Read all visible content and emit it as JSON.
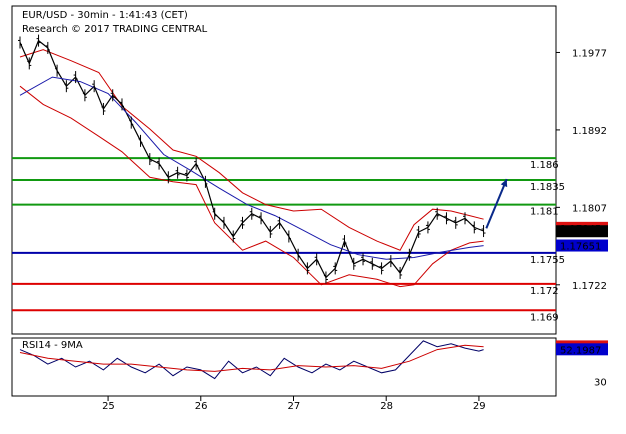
{
  "header": {
    "title": "EUR/USD - 30min - 1:41:43 (CET)",
    "subtitle": "Research © 2017 TRADING CENTRAL"
  },
  "chart_data": [
    {
      "type": "candlestick",
      "title": "EUR/USD - 30min - 1:41:43 (CET)",
      "ylim": [
        1.1668,
        1.2028
      ],
      "y_ticks": [
        1.1977,
        1.1892,
        1.1807,
        1.1722
      ],
      "x_ticks": [
        "25",
        "26",
        "27",
        "28",
        "29"
      ],
      "x_tick_pos": [
        0.3,
        1.3,
        2.3,
        3.3,
        4.3
      ],
      "x_range": [
        -0.65,
        4.7
      ],
      "levels": [
        {
          "label": "1.186",
          "value": 1.1861,
          "color": "#119911"
        },
        {
          "label": "1.1835",
          "value": 1.1837,
          "color": "#119911"
        },
        {
          "label": "1.181",
          "value": 1.181,
          "color": "#119911"
        },
        {
          "label": "1.1755",
          "value": 1.1757,
          "color": "#0000aa"
        },
        {
          "label": "1.172",
          "value": 1.1723,
          "color": "#dd0000"
        },
        {
          "label": "1.169",
          "value": 1.1694,
          "color": "#dd0000"
        }
      ],
      "price_badges": [
        {
          "label": "1.17845",
          "value": 1.17845,
          "bg": "#dd1111",
          "fg": "#ffffff"
        },
        {
          "label": "1.17808",
          "value": 1.17808,
          "bg": "#000000",
          "fg": "#ffffff"
        },
        {
          "label": "1.17651",
          "value": 1.17651,
          "bg": "#0000cc",
          "fg": "#ffffff"
        }
      ],
      "series": [
        {
          "name": "Price",
          "color": "#000000",
          "points": [
            [
              -0.65,
              1.1988
            ],
            [
              -0.55,
              1.1965
            ],
            [
              -0.45,
              1.199
            ],
            [
              -0.35,
              1.1982
            ],
            [
              -0.25,
              1.1957
            ],
            [
              -0.15,
              1.194
            ],
            [
              -0.05,
              1.195
            ],
            [
              0.05,
              1.193
            ],
            [
              0.15,
              1.194
            ],
            [
              0.25,
              1.1915
            ],
            [
              0.35,
              1.193
            ],
            [
              0.45,
              1.192
            ],
            [
              0.55,
              1.19
            ],
            [
              0.65,
              1.188
            ],
            [
              0.75,
              1.186
            ],
            [
              0.85,
              1.1855
            ],
            [
              0.95,
              1.184
            ],
            [
              1.05,
              1.1845
            ],
            [
              1.15,
              1.1842
            ],
            [
              1.25,
              1.1855
            ],
            [
              1.35,
              1.1835
            ],
            [
              1.45,
              1.18
            ],
            [
              1.55,
              1.179
            ],
            [
              1.65,
              1.1775
            ],
            [
              1.75,
              1.179
            ],
            [
              1.85,
              1.18
            ],
            [
              1.95,
              1.1795
            ],
            [
              2.05,
              1.178
            ],
            [
              2.15,
              1.179
            ],
            [
              2.25,
              1.1775
            ],
            [
              2.35,
              1.1755
            ],
            [
              2.45,
              1.174
            ],
            [
              2.55,
              1.175
            ],
            [
              2.65,
              1.173
            ],
            [
              2.75,
              1.174
            ],
            [
              2.85,
              1.177
            ],
            [
              2.95,
              1.1745
            ],
            [
              3.05,
              1.175
            ],
            [
              3.15,
              1.1745
            ],
            [
              3.25,
              1.174
            ],
            [
              3.35,
              1.1748
            ],
            [
              3.45,
              1.1735
            ],
            [
              3.55,
              1.1755
            ],
            [
              3.65,
              1.178
            ],
            [
              3.75,
              1.1785
            ],
            [
              3.85,
              1.18
            ],
            [
              3.95,
              1.1795
            ],
            [
              4.05,
              1.179
            ],
            [
              4.15,
              1.1795
            ],
            [
              4.25,
              1.1785
            ],
            [
              4.35,
              1.1781
            ]
          ]
        },
        {
          "name": "MA",
          "color": "#1a1aaa",
          "points": [
            [
              -0.65,
              1.193
            ],
            [
              -0.3,
              1.195
            ],
            [
              0.0,
              1.1945
            ],
            [
              0.3,
              1.1932
            ],
            [
              0.6,
              1.19
            ],
            [
              0.9,
              1.1865
            ],
            [
              1.2,
              1.1847
            ],
            [
              1.5,
              1.1828
            ],
            [
              1.8,
              1.181
            ],
            [
              2.1,
              1.1798
            ],
            [
              2.4,
              1.1782
            ],
            [
              2.7,
              1.1766
            ],
            [
              3.0,
              1.1755
            ],
            [
              3.3,
              1.175
            ],
            [
              3.6,
              1.1752
            ],
            [
              3.9,
              1.1758
            ],
            [
              4.2,
              1.1763
            ],
            [
              4.35,
              1.1765
            ]
          ]
        }
      ],
      "bands": {
        "color": "#cc0000",
        "upper": [
          [
            -0.65,
            1.1972
          ],
          [
            -0.4,
            1.198
          ],
          [
            -0.1,
            1.1968
          ],
          [
            0.2,
            1.1955
          ],
          [
            0.45,
            1.1918
          ],
          [
            0.75,
            1.1893
          ],
          [
            1.0,
            1.187
          ],
          [
            1.25,
            1.1863
          ],
          [
            1.5,
            1.1845
          ],
          [
            1.75,
            1.1823
          ],
          [
            2.0,
            1.181
          ],
          [
            2.3,
            1.1803
          ],
          [
            2.6,
            1.1805
          ],
          [
            2.9,
            1.1785
          ],
          [
            3.2,
            1.177
          ],
          [
            3.45,
            1.176
          ],
          [
            3.6,
            1.1788
          ],
          [
            3.8,
            1.1805
          ],
          [
            4.0,
            1.1803
          ],
          [
            4.2,
            1.1798
          ],
          [
            4.35,
            1.1794
          ]
        ],
        "lower": [
          [
            -0.65,
            1.194
          ],
          [
            -0.4,
            1.192
          ],
          [
            -0.1,
            1.1905
          ],
          [
            0.2,
            1.1885
          ],
          [
            0.45,
            1.1868
          ],
          [
            0.75,
            1.184
          ],
          [
            1.0,
            1.1835
          ],
          [
            1.25,
            1.1832
          ],
          [
            1.45,
            1.179
          ],
          [
            1.75,
            1.176
          ],
          [
            2.0,
            1.177
          ],
          [
            2.3,
            1.1752
          ],
          [
            2.6,
            1.1722
          ],
          [
            2.9,
            1.1733
          ],
          [
            3.2,
            1.1728
          ],
          [
            3.45,
            1.172
          ],
          [
            3.6,
            1.1722
          ],
          [
            3.8,
            1.1745
          ],
          [
            4.0,
            1.176
          ],
          [
            4.2,
            1.1768
          ],
          [
            4.35,
            1.177
          ]
        ]
      },
      "arrow": {
        "from": [
          4.38,
          1.1784
        ],
        "to": [
          4.6,
          1.1838
        ],
        "color": "#0a2a8a"
      }
    },
    {
      "type": "line",
      "title": "RSI14 - 9MA",
      "ylim": [
        20,
        60
      ],
      "y_ticks": [
        30
      ],
      "badges": [
        {
          "label": "54.2012",
          "value": 54.2,
          "bg": "#dd1111",
          "fg": "#ffffff"
        },
        {
          "label": "52.1987",
          "value": 52.2,
          "bg": "#0000cc",
          "fg": "#ffffff"
        }
      ],
      "series": [
        {
          "name": "RSI14",
          "color": "#000066",
          "points": [
            [
              -0.65,
              52
            ],
            [
              -0.5,
              48
            ],
            [
              -0.35,
              42
            ],
            [
              -0.2,
              46
            ],
            [
              -0.05,
              40
            ],
            [
              0.1,
              44
            ],
            [
              0.25,
              38
            ],
            [
              0.4,
              46
            ],
            [
              0.55,
              40
            ],
            [
              0.7,
              36
            ],
            [
              0.85,
              42
            ],
            [
              1.0,
              34
            ],
            [
              1.15,
              40
            ],
            [
              1.3,
              38
            ],
            [
              1.45,
              32
            ],
            [
              1.6,
              44
            ],
            [
              1.75,
              36
            ],
            [
              1.9,
              40
            ],
            [
              2.05,
              34
            ],
            [
              2.2,
              46
            ],
            [
              2.35,
              40
            ],
            [
              2.5,
              36
            ],
            [
              2.65,
              42
            ],
            [
              2.8,
              38
            ],
            [
              2.95,
              44
            ],
            [
              3.1,
              40
            ],
            [
              3.25,
              36
            ],
            [
              3.4,
              38
            ],
            [
              3.55,
              48
            ],
            [
              3.7,
              58
            ],
            [
              3.85,
              54
            ],
            [
              4.0,
              56
            ],
            [
              4.15,
              53
            ],
            [
              4.3,
              51
            ],
            [
              4.35,
              52
            ]
          ]
        },
        {
          "name": "9MA",
          "color": "#cc0000",
          "points": [
            [
              -0.65,
              50
            ],
            [
              -0.35,
              46
            ],
            [
              -0.05,
              44
            ],
            [
              0.25,
              42
            ],
            [
              0.55,
              42
            ],
            [
              0.85,
              40
            ],
            [
              1.15,
              38
            ],
            [
              1.45,
              37
            ],
            [
              1.75,
              39
            ],
            [
              2.05,
              38
            ],
            [
              2.35,
              41
            ],
            [
              2.65,
              40
            ],
            [
              2.95,
              41
            ],
            [
              3.25,
              39
            ],
            [
              3.55,
              44
            ],
            [
              3.85,
              52
            ],
            [
              4.15,
              55
            ],
            [
              4.35,
              54
            ]
          ]
        }
      ]
    }
  ]
}
